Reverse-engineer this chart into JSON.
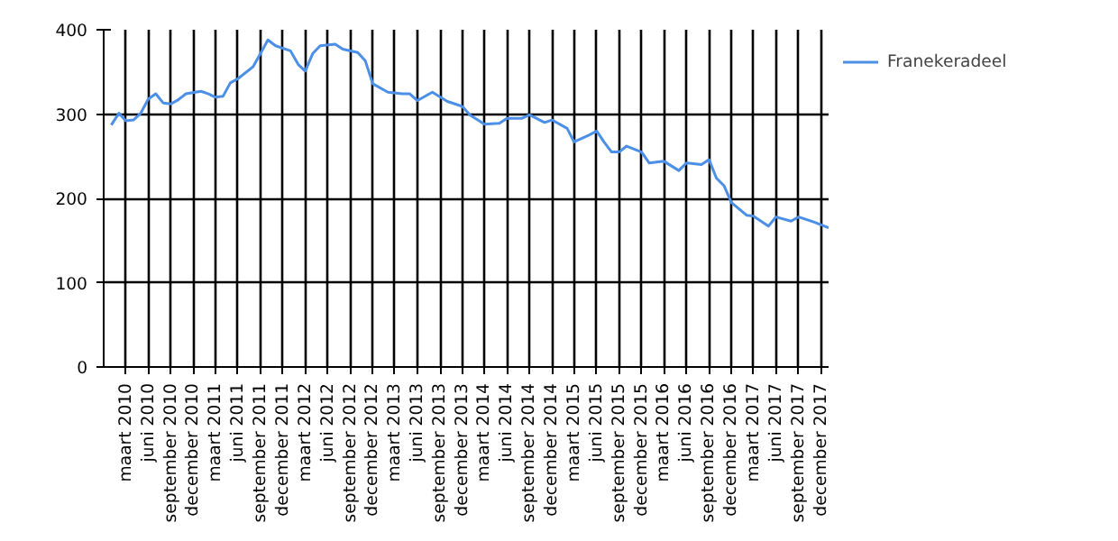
{
  "chart_data": {
    "type": "line",
    "legend": "top right",
    "grid": true,
    "marker": "none",
    "line_style": "solid",
    "x": [
      "2010-01",
      "2010-02",
      "2010-03",
      "2010-04",
      "2010-05",
      "2010-06",
      "2010-07",
      "2010-08",
      "2010-09",
      "2010-10",
      "2010-11",
      "2011-01",
      "2011-02",
      "2011-03",
      "2011-04",
      "2011-05",
      "2011-06",
      "2011-08",
      "2011-09",
      "2011-10",
      "2011-11",
      "2012-01",
      "2012-02",
      "2012-03",
      "2012-04",
      "2012-05",
      "2012-07",
      "2012-08",
      "2012-10",
      "2012-11",
      "2012-12",
      "2013-02",
      "2013-04",
      "2013-05",
      "2013-06",
      "2013-08",
      "2013-10",
      "2013-11",
      "2013-12",
      "2014-01",
      "2014-03",
      "2014-05",
      "2014-06",
      "2014-08",
      "2014-09",
      "2014-11",
      "2014-12",
      "2015-02",
      "2015-03",
      "2015-05",
      "2015-06",
      "2015-07",
      "2015-08",
      "2015-09",
      "2015-10",
      "2015-12",
      "2016-01",
      "2016-03",
      "2016-05",
      "2016-06",
      "2016-08",
      "2016-09",
      "2016-10",
      "2016-11",
      "2016-12",
      "2017-02",
      "2017-03",
      "2017-05",
      "2017-06",
      "2017-08",
      "2017-09",
      "2017-11",
      "2018-01"
    ],
    "series": [
      {
        "name": "Franekeradeel",
        "color": "#4c8fe6",
        "values": [
          287,
          301,
          292,
          293,
          301,
          318,
          324,
          313,
          312,
          317,
          324,
          327,
          324,
          320,
          321,
          337,
          342,
          356,
          372,
          388,
          381,
          375,
          359,
          351,
          372,
          381,
          383,
          377,
          373,
          363,
          336,
          326,
          324,
          324,
          316,
          326,
          315,
          312,
          309,
          299,
          288,
          289,
          295,
          295,
          299,
          290,
          293,
          283,
          267,
          275,
          280,
          267,
          255,
          255,
          262,
          255,
          242,
          244,
          233,
          242,
          240,
          246,
          224,
          215,
          195,
          180,
          179,
          167,
          178,
          173,
          178,
          172,
          165
        ]
      }
    ],
    "xlim": [
      "2009-12",
      "2018-01"
    ],
    "xticks": [
      {
        "value": "2010-03",
        "label": "maart 2010"
      },
      {
        "value": "2010-06",
        "label": "juni 2010"
      },
      {
        "value": "2010-09",
        "label": "september 2010"
      },
      {
        "value": "2010-12",
        "label": "december 2010"
      },
      {
        "value": "2011-03",
        "label": "maart 2011"
      },
      {
        "value": "2011-06",
        "label": "juni 2011"
      },
      {
        "value": "2011-09",
        "label": "september 2011"
      },
      {
        "value": "2011-12",
        "label": "december 2011"
      },
      {
        "value": "2012-03",
        "label": "maart 2012"
      },
      {
        "value": "2012-06",
        "label": "juni 2012"
      },
      {
        "value": "2012-09",
        "label": "september 2012"
      },
      {
        "value": "2012-12",
        "label": "december 2012"
      },
      {
        "value": "2013-03",
        "label": "maart 2013"
      },
      {
        "value": "2013-06",
        "label": "juni 2013"
      },
      {
        "value": "2013-09",
        "label": "september 2013"
      },
      {
        "value": "2013-12",
        "label": "december 2013"
      },
      {
        "value": "2014-03",
        "label": "maart 2014"
      },
      {
        "value": "2014-06",
        "label": "juni 2014"
      },
      {
        "value": "2014-09",
        "label": "september 2014"
      },
      {
        "value": "2014-12",
        "label": "december 2014"
      },
      {
        "value": "2015-03",
        "label": "maart 2015"
      },
      {
        "value": "2015-06",
        "label": "juni 2015"
      },
      {
        "value": "2015-09",
        "label": "september 2015"
      },
      {
        "value": "2015-12",
        "label": "december 2015"
      },
      {
        "value": "2016-03",
        "label": "maart 2016"
      },
      {
        "value": "2016-06",
        "label": "juni 2016"
      },
      {
        "value": "2016-09",
        "label": "september 2016"
      },
      {
        "value": "2016-12",
        "label": "december 2016"
      },
      {
        "value": "2017-03",
        "label": "maart 2017"
      },
      {
        "value": "2017-06",
        "label": "juni 2017"
      },
      {
        "value": "2017-09",
        "label": "september 2017"
      },
      {
        "value": "2017-12",
        "label": "december 2017"
      }
    ],
    "ylim": [
      0,
      400
    ],
    "yticks": [
      0,
      100,
      200,
      300,
      400
    ]
  }
}
